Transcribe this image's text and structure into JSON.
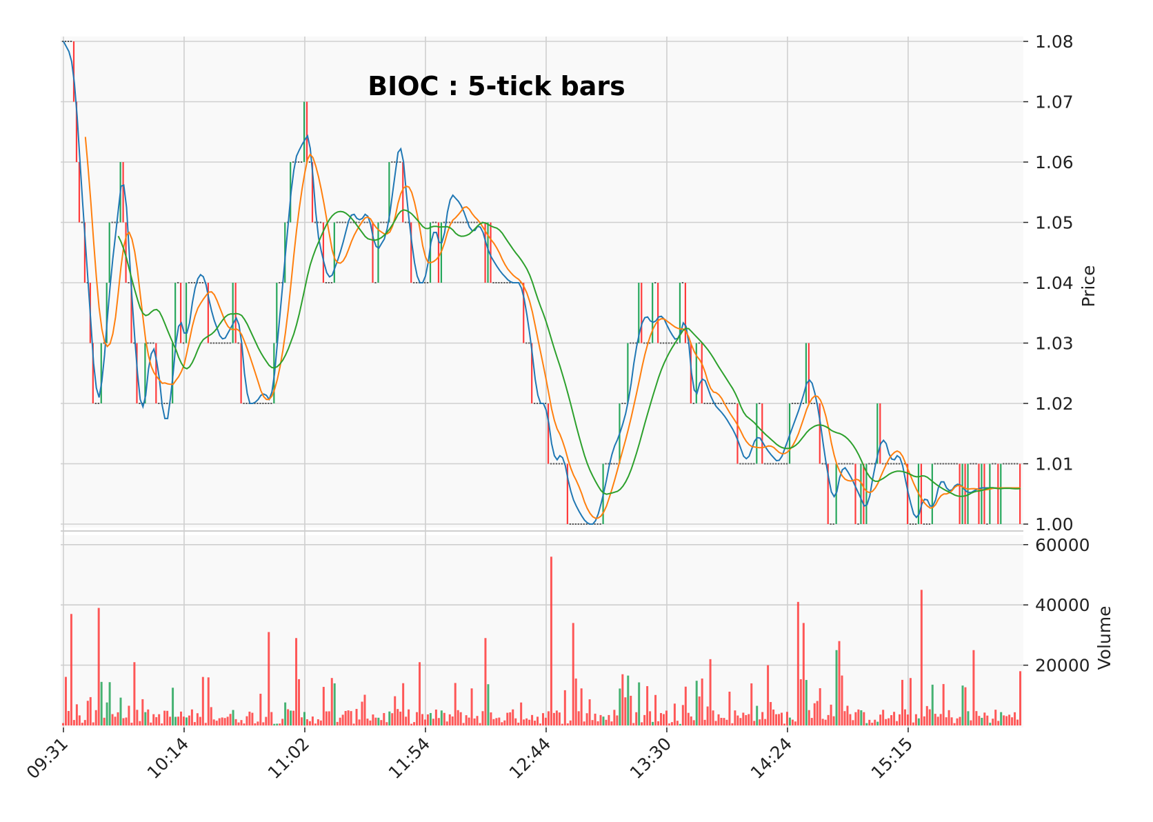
{
  "chart_data": {
    "type": "candlestick-with-volume",
    "title": "BIOC : 5-tick bars",
    "price_axis": {
      "label": "Price",
      "ticks": [
        "1.08",
        "1.07",
        "1.06",
        "1.05",
        "1.04",
        "1.03",
        "1.02",
        "1.01",
        "1.00"
      ],
      "range": [
        1.0,
        1.08
      ],
      "side": "right"
    },
    "volume_axis": {
      "label": "Volume",
      "ticks": [
        "60000",
        "40000",
        "20000"
      ],
      "range": [
        0,
        60000
      ],
      "side": "right"
    },
    "x_axis": {
      "tick_labels": [
        "09:31",
        "10:14",
        "11:02",
        "11:54",
        "12:44",
        "13:30",
        "14:24",
        "15:15"
      ],
      "tick_bar_index": [
        0,
        44,
        88,
        132,
        176,
        220,
        264,
        308
      ],
      "bar_count": 350
    },
    "grid": true,
    "colors": {
      "up": "#26a65b",
      "down": "#ff3b3b",
      "flat": "#555555",
      "background": "#f9f9f9",
      "line_fast": "#1f77b4",
      "line_mid": "#ff7f0e",
      "line_slow": "#2ca02c"
    },
    "series": [
      {
        "style": "line",
        "color": "#1f77b4",
        "window": 3
      },
      {
        "style": "line",
        "color": "#ff7f0e",
        "window": 9
      },
      {
        "style": "line",
        "color": "#2ca02c",
        "window": 21
      }
    ],
    "price_path": [
      [
        0,
        1.08
      ],
      [
        3,
        1.075
      ],
      [
        5,
        1.06
      ],
      [
        8,
        1.04
      ],
      [
        11,
        1.02
      ],
      [
        13,
        1.022
      ],
      [
        16,
        1.04
      ],
      [
        19,
        1.052
      ],
      [
        21,
        1.06
      ],
      [
        23,
        1.045
      ],
      [
        25,
        1.03
      ],
      [
        27,
        1.02
      ],
      [
        28,
        1.017
      ],
      [
        31,
        1.03
      ],
      [
        33,
        1.028
      ],
      [
        35,
        1.02
      ],
      [
        36,
        1.015
      ],
      [
        38,
        1.02
      ],
      [
        41,
        1.035
      ],
      [
        44,
        1.03
      ],
      [
        47,
        1.04
      ],
      [
        50,
        1.042
      ],
      [
        53,
        1.035
      ],
      [
        57,
        1.03
      ],
      [
        63,
        1.035
      ],
      [
        66,
        1.02
      ],
      [
        69,
        1.02
      ],
      [
        72,
        1.022
      ],
      [
        75,
        1.02
      ],
      [
        79,
        1.04
      ],
      [
        83,
        1.06
      ],
      [
        86,
        1.063
      ],
      [
        89,
        1.065
      ],
      [
        91,
        1.05
      ],
      [
        93,
        1.045
      ],
      [
        96,
        1.04
      ],
      [
        100,
        1.045
      ],
      [
        104,
        1.052
      ],
      [
        107,
        1.05
      ],
      [
        110,
        1.052
      ],
      [
        113,
        1.045
      ],
      [
        117,
        1.048
      ],
      [
        122,
        1.065
      ],
      [
        125,
        1.05
      ],
      [
        128,
        1.04
      ],
      [
        131,
        1.04
      ],
      [
        134,
        1.05
      ],
      [
        137,
        1.045
      ],
      [
        140,
        1.055
      ],
      [
        144,
        1.053
      ],
      [
        148,
        1.048
      ],
      [
        151,
        1.05
      ],
      [
        154,
        1.045
      ],
      [
        158,
        1.042
      ],
      [
        162,
        1.04
      ],
      [
        166,
        1.04
      ],
      [
        169,
        1.032
      ],
      [
        172,
        1.02
      ],
      [
        175,
        1.02
      ],
      [
        178,
        1.01
      ],
      [
        181,
        1.012
      ],
      [
        184,
        1.005
      ],
      [
        187,
        1.002
      ],
      [
        190,
        1.0
      ],
      [
        193,
        1.0
      ],
      [
        196,
        1.005
      ],
      [
        199,
        1.012
      ],
      [
        202,
        1.015
      ],
      [
        205,
        1.02
      ],
      [
        208,
        1.03
      ],
      [
        211,
        1.035
      ],
      [
        214,
        1.033
      ],
      [
        217,
        1.035
      ],
      [
        220,
        1.032
      ],
      [
        223,
        1.03
      ],
      [
        226,
        1.035
      ],
      [
        229,
        1.02
      ],
      [
        232,
        1.025
      ],
      [
        236,
        1.02
      ],
      [
        240,
        1.018
      ],
      [
        244,
        1.015
      ],
      [
        248,
        1.01
      ],
      [
        252,
        1.015
      ],
      [
        256,
        1.012
      ],
      [
        260,
        1.01
      ],
      [
        264,
        1.015
      ],
      [
        268,
        1.02
      ],
      [
        271,
        1.025
      ],
      [
        274,
        1.02
      ],
      [
        277,
        1.01
      ],
      [
        280,
        1.003
      ],
      [
        283,
        1.01
      ],
      [
        286,
        1.008
      ],
      [
        289,
        1.005
      ],
      [
        292,
        1.002
      ],
      [
        295,
        1.01
      ],
      [
        298,
        1.015
      ],
      [
        301,
        1.01
      ],
      [
        304,
        1.012
      ],
      [
        307,
        1.005
      ],
      [
        310,
        1.0
      ],
      [
        313,
        1.005
      ],
      [
        316,
        1.002
      ],
      [
        319,
        1.008
      ],
      [
        322,
        1.005
      ],
      [
        325,
        1.007
      ],
      [
        329,
        1.005
      ],
      [
        333,
        1.006
      ]
    ],
    "volume_spikes": [
      [
        3,
        37000
      ],
      [
        13,
        39000
      ],
      [
        26,
        21000
      ],
      [
        75,
        31000
      ],
      [
        85,
        29000
      ],
      [
        130,
        21000
      ],
      [
        154,
        29000
      ],
      [
        178,
        56000
      ],
      [
        186,
        34000
      ],
      [
        236,
        22000
      ],
      [
        257,
        20000
      ],
      [
        268,
        41000
      ],
      [
        270,
        34000
      ],
      [
        282,
        25000
      ],
      [
        283,
        28000
      ],
      [
        313,
        45000
      ],
      [
        332,
        25000
      ],
      [
        349,
        18000
      ]
    ]
  }
}
